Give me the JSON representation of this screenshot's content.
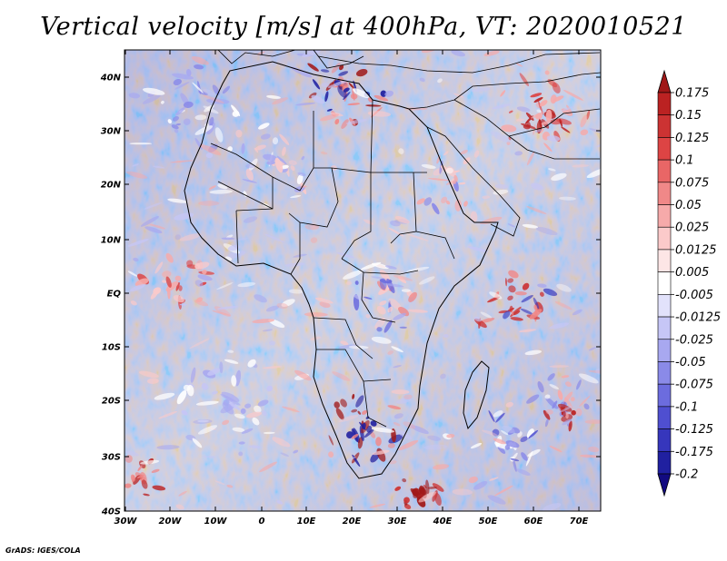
{
  "title": "Vertical velocity [m/s] at 400hPa, VT: 2020010521",
  "lat_labels": [
    "40N",
    "30N",
    "20N",
    "10N",
    "EQ",
    "10S",
    "20S",
    "30S",
    "40S"
  ],
  "lon_labels": [
    "30W",
    "20W",
    "10W",
    "0",
    "10E",
    "20E",
    "30E",
    "40E",
    "50E",
    "60E",
    "70E"
  ],
  "colorbar": {
    "labels": [
      "0.175",
      "0.15",
      "0.125",
      "0.1",
      "0.075",
      "0.05",
      "0.025",
      "0.0125",
      "0.005",
      "-0.005",
      "-0.0125",
      "-0.025",
      "-0.05",
      "-0.075",
      "-0.1",
      "-0.125",
      "-0.175",
      "-0.2"
    ],
    "colors": [
      "#a01818",
      "#bb2222",
      "#cc3333",
      "#dd4444",
      "#e96666",
      "#f08888",
      "#f6aaaa",
      "#fbcaca",
      "#fde6e6",
      "#ffffff",
      "#e2e2fb",
      "#c6c6f6",
      "#a8a8f0",
      "#8a8ae8",
      "#6c6cde",
      "#4f4fd0",
      "#3636bc",
      "#2020a0",
      "#120a80"
    ]
  },
  "credit": "GrADS: IGES/COLA"
}
